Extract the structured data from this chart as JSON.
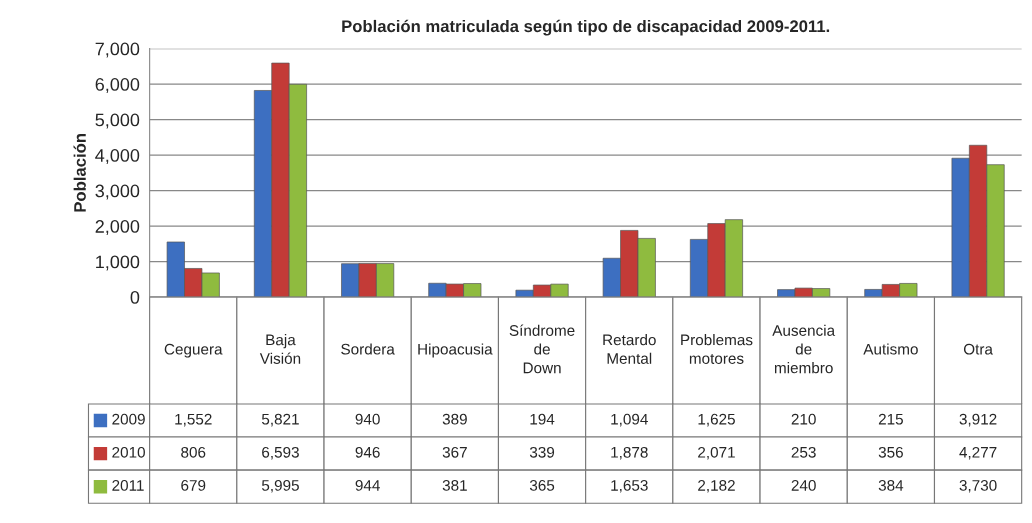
{
  "chart_data": {
    "type": "bar",
    "title": "Población matriculada según tipo de discapacidad 2009-2011.",
    "ylabel": "Población",
    "categories": [
      "Ceguera",
      "Baja Visión",
      "Sordera",
      "Hipoacusia",
      "Síndrome de Down",
      "Retardo Mental",
      "Problemas motores",
      "Ausencia de miembro",
      "Autismo",
      "Otra"
    ],
    "series": [
      {
        "name": "2009",
        "color": "#3d6fc1",
        "values": [
          1552,
          5821,
          940,
          389,
          194,
          1094,
          1625,
          210,
          215,
          3912
        ],
        "value_labels": [
          "1,552",
          "5,821",
          "940",
          "389",
          "194",
          "1,094",
          "1,625",
          "210",
          "215",
          "3,912"
        ]
      },
      {
        "name": "2010",
        "color": "#c33b37",
        "values": [
          806,
          6593,
          946,
          367,
          339,
          1878,
          2071,
          253,
          356,
          4277
        ],
        "value_labels": [
          "806",
          "6,593",
          "946",
          "367",
          "339",
          "1,878",
          "2,071",
          "253",
          "356",
          "4,277"
        ]
      },
      {
        "name": "2011",
        "color": "#8fbb3f",
        "values": [
          679,
          5995,
          944,
          381,
          365,
          1653,
          2182,
          240,
          384,
          3730
        ],
        "value_labels": [
          "679",
          "5,995",
          "944",
          "381",
          "365",
          "1,653",
          "2,182",
          "240",
          "384",
          "3,730"
        ]
      }
    ],
    "ylim": [
      0,
      7000
    ],
    "yticks": [
      0,
      {
        "value": 1000,
        "label": "1,000"
      },
      {
        "value": 2000,
        "label": "2,000"
      },
      {
        "value": 3000,
        "label": "3,000"
      },
      {
        "value": 4000,
        "label": "4,000"
      },
      {
        "value": 5000,
        "label": "5,000"
      },
      {
        "value": 6000,
        "label": "6,000"
      },
      {
        "value": 7000,
        "label": "7,000"
      }
    ],
    "grid": "y",
    "legend": "bottom left"
  }
}
